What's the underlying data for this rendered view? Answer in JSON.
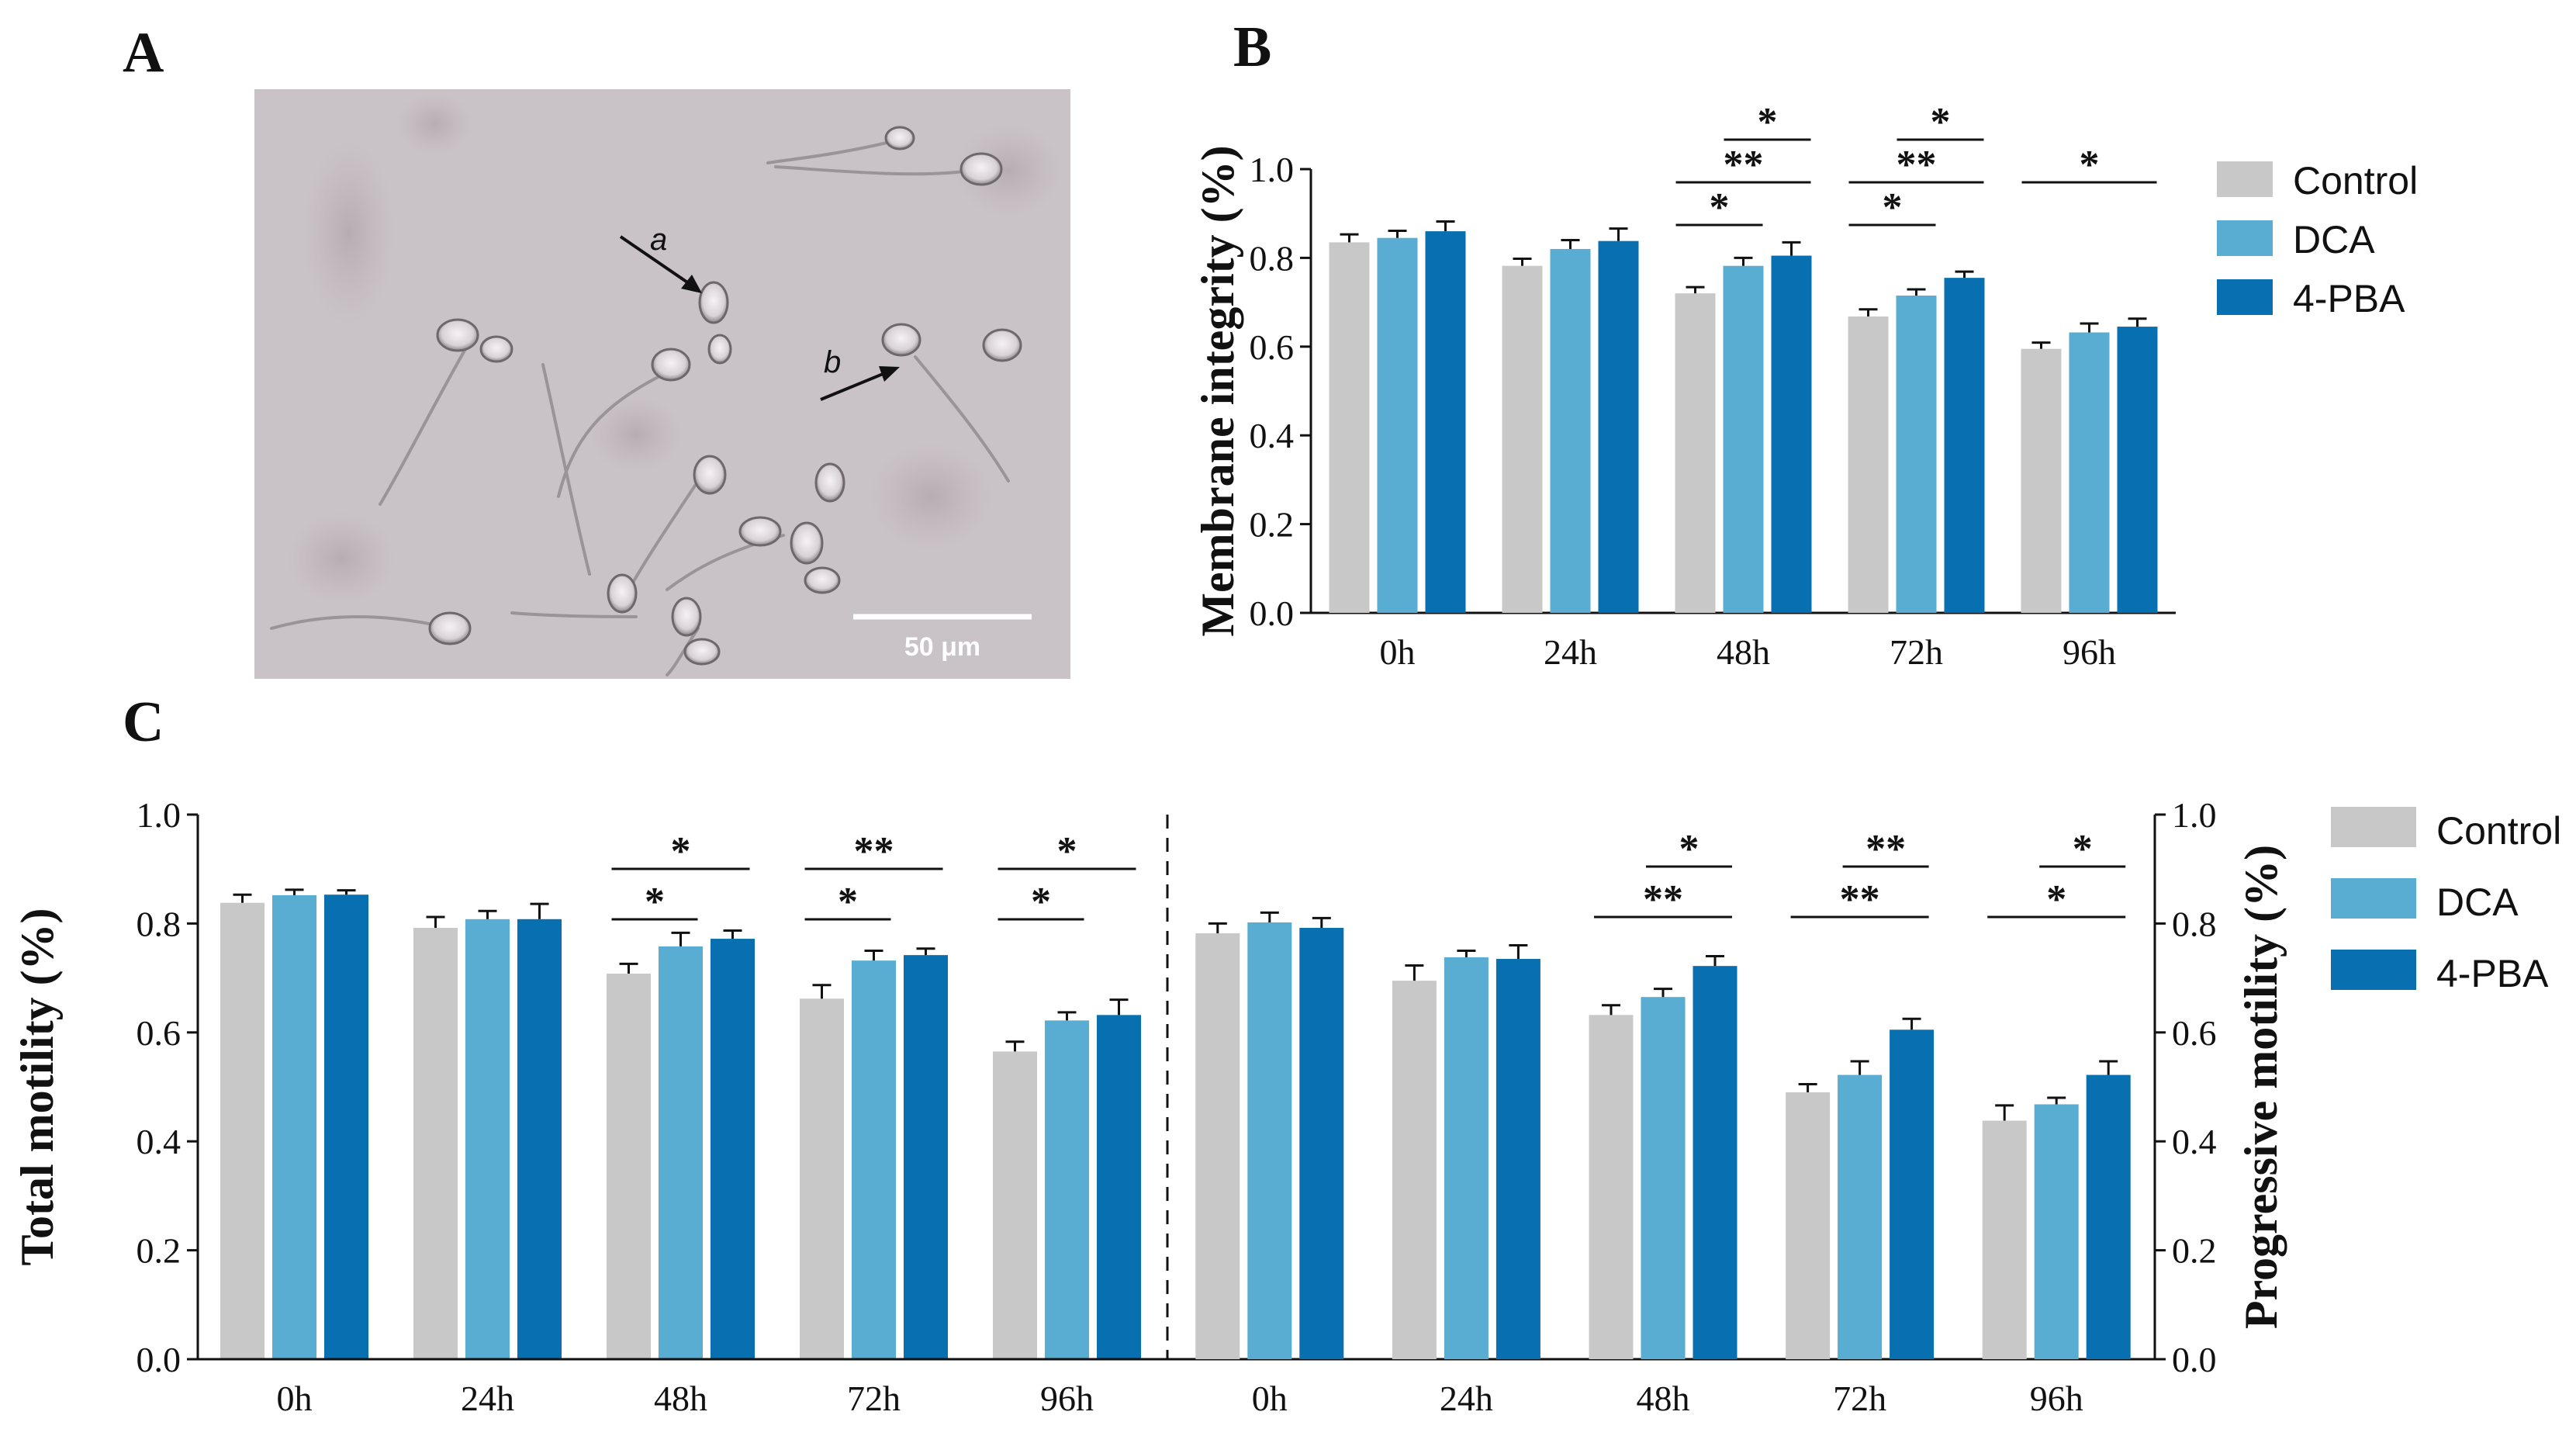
{
  "panels": {
    "a": "A",
    "b": "B",
    "c": "C"
  },
  "micrograph": {
    "label_a": "a",
    "label_b": "b",
    "scale_bar": "50 μm"
  },
  "colors": {
    "Control": "#c8c8c8",
    "DCA": "#5aadd2",
    "4-PBA": "#0870b0"
  },
  "chart_data": [
    {
      "id": "B",
      "type": "bar",
      "title": "",
      "xlabel": "",
      "ylabel": "Membrane integrity (%)",
      "ylim": [
        0,
        1.0
      ],
      "yticks": [
        "0.0",
        "0.2",
        "0.4",
        "0.6",
        "0.8",
        "1.0"
      ],
      "categories": [
        "0h",
        "24h",
        "48h",
        "72h",
        "96h"
      ],
      "series": [
        {
          "name": "Control",
          "values": [
            0.835,
            0.782,
            0.72,
            0.668,
            0.595
          ],
          "errors": [
            0.018,
            0.016,
            0.014,
            0.016,
            0.014
          ]
        },
        {
          "name": "DCA",
          "values": [
            0.845,
            0.82,
            0.782,
            0.715,
            0.632
          ],
          "errors": [
            0.016,
            0.02,
            0.018,
            0.014,
            0.02
          ]
        },
        {
          "name": "4-PBA",
          "values": [
            0.86,
            0.838,
            0.805,
            0.755,
            0.645
          ],
          "errors": [
            0.022,
            0.028,
            0.03,
            0.014,
            0.018
          ]
        }
      ],
      "legend": [
        "Control",
        "DCA",
        "4-PBA"
      ],
      "annotations": [
        {
          "category": "48h",
          "from": "Control",
          "to": "DCA",
          "label": "*",
          "level": 0
        },
        {
          "category": "48h",
          "from": "Control",
          "to": "4-PBA",
          "label": "**",
          "level": 1
        },
        {
          "category": "48h",
          "from": "DCA",
          "to": "4-PBA",
          "label": "*",
          "level": 2
        },
        {
          "category": "72h",
          "from": "Control",
          "to": "DCA",
          "label": "*",
          "level": 0
        },
        {
          "category": "72h",
          "from": "Control",
          "to": "4-PBA",
          "label": "**",
          "level": 1
        },
        {
          "category": "72h",
          "from": "DCA",
          "to": "4-PBA",
          "label": "*",
          "level": 2
        },
        {
          "category": "96h",
          "from": "Control",
          "to": "4-PBA",
          "label": "*",
          "level": 1
        }
      ]
    },
    {
      "id": "C-left",
      "type": "bar",
      "title": "",
      "xlabel": "",
      "ylabel": "Total motility (%)",
      "ylim": [
        0,
        1.0
      ],
      "yticks": [
        "0.0",
        "0.2",
        "0.4",
        "0.6",
        "0.8",
        "1.0"
      ],
      "categories": [
        "0h",
        "24h",
        "48h",
        "72h",
        "96h"
      ],
      "series": [
        {
          "name": "Control",
          "values": [
            0.838,
            0.792,
            0.708,
            0.662,
            0.565
          ],
          "errors": [
            0.015,
            0.02,
            0.018,
            0.025,
            0.018
          ]
        },
        {
          "name": "DCA",
          "values": [
            0.852,
            0.808,
            0.758,
            0.732,
            0.622
          ],
          "errors": [
            0.01,
            0.015,
            0.025,
            0.018,
            0.015
          ]
        },
        {
          "name": "4-PBA",
          "values": [
            0.853,
            0.808,
            0.772,
            0.742,
            0.632
          ],
          "errors": [
            0.008,
            0.028,
            0.015,
            0.012,
            0.028
          ]
        }
      ],
      "annotations": [
        {
          "category": "48h",
          "from": "Control",
          "to": "DCA",
          "label": "*",
          "level": 0
        },
        {
          "category": "48h",
          "from": "Control",
          "to": "4-PBA",
          "label": "*",
          "level": 1
        },
        {
          "category": "72h",
          "from": "Control",
          "to": "DCA",
          "label": "*",
          "level": 0
        },
        {
          "category": "72h",
          "from": "Control",
          "to": "4-PBA",
          "label": "**",
          "level": 1
        },
        {
          "category": "96h",
          "from": "Control",
          "to": "DCA",
          "label": "*",
          "level": 0
        },
        {
          "category": "96h",
          "from": "Control",
          "to": "4-PBA",
          "label": "*",
          "level": 1
        }
      ]
    },
    {
      "id": "C-right",
      "type": "bar",
      "title": "",
      "xlabel": "",
      "ylabel": "Progressive motility (%)",
      "ylim": [
        0,
        1.0
      ],
      "yticks": [
        "0.0",
        "0.2",
        "0.4",
        "0.6",
        "0.8",
        "1.0"
      ],
      "categories": [
        "0h",
        "24h",
        "48h",
        "72h",
        "96h"
      ],
      "series": [
        {
          "name": "Control",
          "values": [
            0.782,
            0.695,
            0.632,
            0.49,
            0.438
          ],
          "errors": [
            0.018,
            0.028,
            0.018,
            0.015,
            0.028
          ]
        },
        {
          "name": "DCA",
          "values": [
            0.802,
            0.738,
            0.665,
            0.522,
            0.468
          ],
          "errors": [
            0.018,
            0.012,
            0.015,
            0.025,
            0.012
          ]
        },
        {
          "name": "4-PBA",
          "values": [
            0.792,
            0.735,
            0.722,
            0.605,
            0.522
          ],
          "errors": [
            0.018,
            0.025,
            0.018,
            0.02,
            0.025
          ]
        }
      ],
      "legend": [
        "Control",
        "DCA",
        "4-PBA"
      ],
      "annotations": [
        {
          "category": "48h",
          "from": "Control",
          "to": "4-PBA",
          "label": "**",
          "level": 0
        },
        {
          "category": "48h",
          "from": "DCA",
          "to": "4-PBA",
          "label": "*",
          "level": 1
        },
        {
          "category": "72h",
          "from": "Control",
          "to": "4-PBA",
          "label": "**",
          "level": 0
        },
        {
          "category": "72h",
          "from": "DCA",
          "to": "4-PBA",
          "label": "**",
          "level": 1
        },
        {
          "category": "96h",
          "from": "Control",
          "to": "4-PBA",
          "label": "*",
          "level": 0
        },
        {
          "category": "96h",
          "from": "DCA",
          "to": "4-PBA",
          "label": "*",
          "level": 1
        }
      ]
    }
  ]
}
